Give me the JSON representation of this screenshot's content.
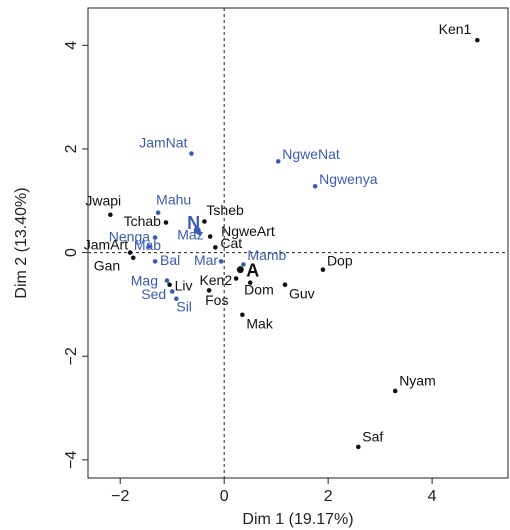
{
  "chart_data": {
    "type": "scatter",
    "x_label": "Dim 1 (19.17%)",
    "y_label": "Dim 2 (13.40%)",
    "xlim": [
      -2.62,
      5.46
    ],
    "ylim": [
      -4.35,
      4.72
    ],
    "xticks": [
      {
        "value": -2,
        "label": "−2"
      },
      0,
      2,
      4
    ],
    "yticks": [
      {
        "value": -4,
        "label": "−4"
      },
      {
        "value": -2,
        "label": "−2"
      },
      0,
      2,
      4
    ],
    "reference_lines": {
      "x": 0,
      "y": 0
    },
    "points": [
      {
        "label": "Ken1",
        "x": 4.87,
        "y": 4.1,
        "color": "#111111"
      },
      {
        "label": "JamNat",
        "x": -0.63,
        "y": 1.91,
        "color": "#3b5cb5"
      },
      {
        "label": "NgweNat",
        "x": 1.04,
        "y": 1.76,
        "color": "#3b5cb5"
      },
      {
        "label": "Ngwenya",
        "x": 1.75,
        "y": 1.28,
        "color": "#3b5cb5"
      },
      {
        "label": "Jwapi",
        "x": -2.19,
        "y": 0.73,
        "color": "#111111"
      },
      {
        "label": "Tchab",
        "x": -1.12,
        "y": 0.58,
        "color": "#111111"
      },
      {
        "label": "Mahu",
        "x": -1.27,
        "y": 0.77,
        "color": "#3b5cb5"
      },
      {
        "label": "N",
        "x": -0.52,
        "y": 0.43,
        "color": "#3b5cb5",
        "bold": true
      },
      {
        "label": "Tsheb",
        "x": -0.38,
        "y": 0.6,
        "color": "#111111"
      },
      {
        "label": "Nenga",
        "x": -1.33,
        "y": 0.29,
        "color": "#3b5cb5"
      },
      {
        "label": "NgweArt",
        "x": -0.27,
        "y": 0.31,
        "color": "#111111"
      },
      {
        "label": "Maz",
        "x": -0.48,
        "y": 0.38,
        "color": "#3b5cb5"
      },
      {
        "label": "Mab",
        "x": -1.45,
        "y": 0.12,
        "color": "#3b5cb5"
      },
      {
        "label": "Cat",
        "x": -0.17,
        "y": 0.1,
        "color": "#111111"
      },
      {
        "label": "JamArt",
        "x": -1.81,
        "y": 0.0,
        "color": "#111111"
      },
      {
        "label": "Gan",
        "x": -1.75,
        "y": -0.1,
        "color": "#111111"
      },
      {
        "label": "Bal",
        "x": -1.33,
        "y": -0.17,
        "color": "#3b5cb5"
      },
      {
        "label": "Mar",
        "x": -0.06,
        "y": -0.17,
        "color": "#3b5cb5"
      },
      {
        "label": "Mamb",
        "x": 0.37,
        "y": -0.23,
        "color": "#3b5cb5"
      },
      {
        "label": "A",
        "x": 0.31,
        "y": -0.33,
        "color": "#111111",
        "bold": true
      },
      {
        "label": "Dop",
        "x": 1.9,
        "y": -0.33,
        "color": "#111111"
      },
      {
        "label": "Ken2",
        "x": 0.23,
        "y": -0.5,
        "color": "#111111"
      },
      {
        "label": "Dom",
        "x": 0.5,
        "y": -0.58,
        "color": "#111111"
      },
      {
        "label": "Guv",
        "x": 1.17,
        "y": -0.62,
        "color": "#111111"
      },
      {
        "label": "Mag",
        "x": -1.1,
        "y": -0.54,
        "color": "#3b5cb5"
      },
      {
        "label": "Liv",
        "x": -1.05,
        "y": -0.62,
        "color": "#111111"
      },
      {
        "label": "Sed",
        "x": -1.0,
        "y": -0.75,
        "color": "#3b5cb5"
      },
      {
        "label": "Sil",
        "x": -0.92,
        "y": -0.89,
        "color": "#3b5cb5"
      },
      {
        "label": "Fos",
        "x": -0.29,
        "y": -0.73,
        "color": "#111111"
      },
      {
        "label": "Mak",
        "x": 0.35,
        "y": -1.2,
        "color": "#111111"
      },
      {
        "label": "Nyam",
        "x": 3.29,
        "y": -2.67,
        "color": "#111111"
      },
      {
        "label": "Saf",
        "x": 2.58,
        "y": -3.75,
        "color": "#111111"
      }
    ]
  }
}
